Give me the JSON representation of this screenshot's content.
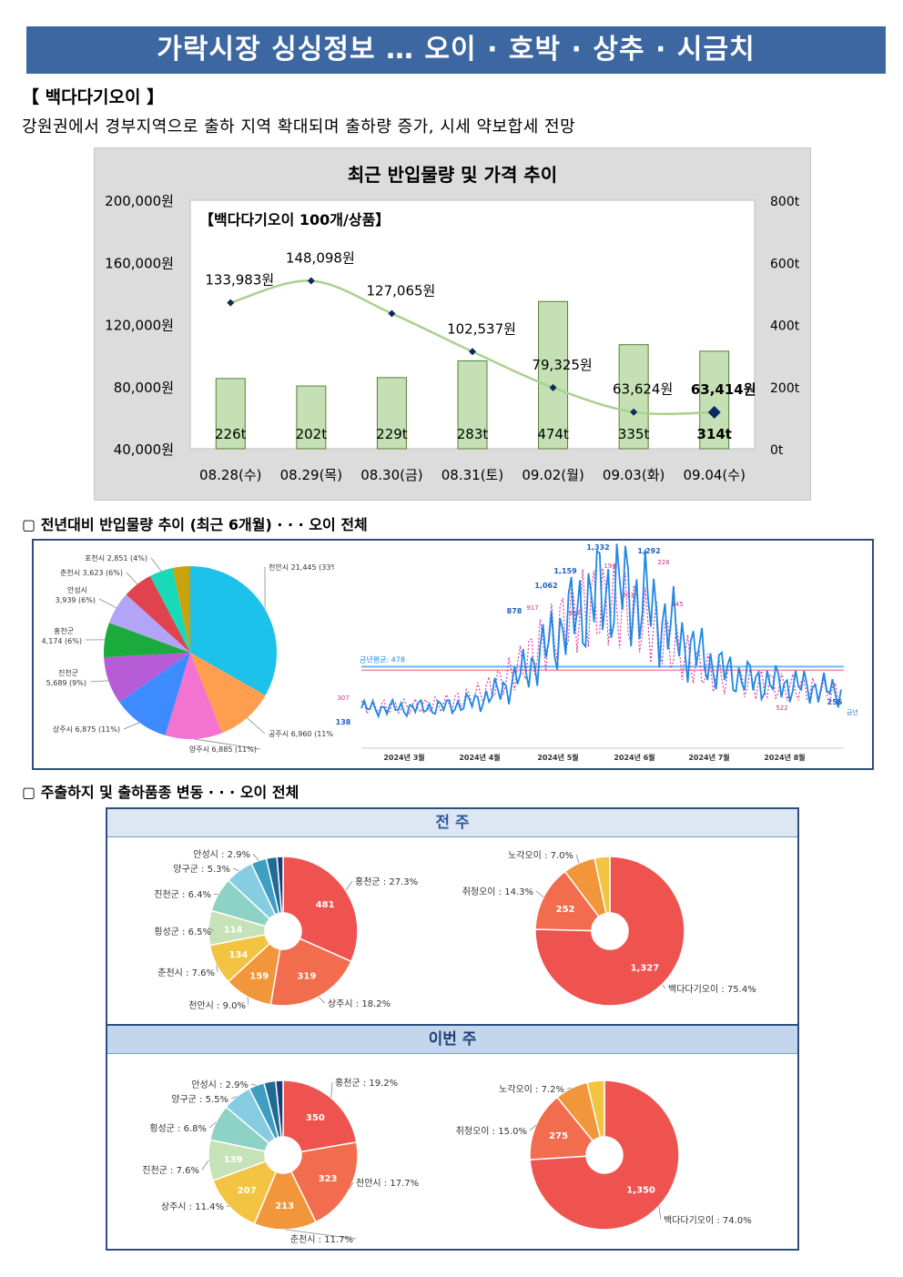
{
  "banner": "가락시장 싱싱정보 … 오이 · 호박 · 상추 · 시금치",
  "section_title": "【 백다다기오이 】",
  "summary": "강원권에서 경부지역으로 출하 지역 확대되며 출하량 증가, 시세 약보합세 전망",
  "chart_data": [
    {
      "type": "bar+line",
      "title": "최근 반입물량 및 가격 추이",
      "subtitle": "【백다다기오이 100개/상품】",
      "categories": [
        "08.28(수)",
        "08.29(목)",
        "08.30(금)",
        "08.31(토)",
        "09.02(월)",
        "09.03(화)",
        "09.04(수)"
      ],
      "volume_t": [
        226,
        202,
        229,
        283,
        474,
        335,
        314
      ],
      "volume_labels": [
        "226t",
        "202t",
        "229t",
        "283t",
        "474t",
        "335t",
        "314t"
      ],
      "price_won": [
        133983,
        148098,
        127065,
        102537,
        79325,
        63624,
        63414
      ],
      "price_labels": [
        "133,983원",
        "148,098원",
        "127,065원",
        "102,537원",
        "79,325원",
        "63,624원",
        "63,414원"
      ],
      "y_left_ticks": [
        "200,000원",
        "160,000원",
        "120,000원",
        "80,000원",
        "40,000원"
      ],
      "y_left_range": [
        40000,
        200000
      ],
      "y_right_ticks": [
        "800t",
        "600t",
        "400t",
        "200t",
        "0t"
      ],
      "y_right_range": [
        0,
        800
      ],
      "colors": {
        "bar": "#c5e0b4",
        "bar_border": "#548235",
        "line": "#a9d18e",
        "marker": "#0b2a5e"
      }
    },
    {
      "type": "pie",
      "title": "전년대비 반입물량 추이 (최근 6개월) · · · 오이 전체",
      "slices": [
        {
          "label": "천안시 21,445 (33%)",
          "value": 21445,
          "color": "#1cc2ea"
        },
        {
          "label": "공주시 6,960 (11%)",
          "value": 6960,
          "color": "#ff9e4f"
        },
        {
          "label": "양주시 6,885 (11%)",
          "value": 6885,
          "color": "#f472d0"
        },
        {
          "label": "상주시 6,875 (11%)",
          "value": 6875,
          "color": "#3d8bff"
        },
        {
          "label": "진천군 5,689 (9%)",
          "value": 5689,
          "color": "#b65cd6"
        },
        {
          "label": "홍천군 4,174 (6%)",
          "value": 4174,
          "color": "#1aab3c"
        },
        {
          "label": "안성시 3,939 (6%)",
          "value": 3939,
          "color": "#b2a4f7"
        },
        {
          "label": "춘천시 3,623 (6%)",
          "value": 3623,
          "color": "#e0424e"
        },
        {
          "label": "포천시 2,851 (4%)",
          "value": 2851,
          "color": "#18d9b8"
        },
        {
          "label": "",
          "value": 2100,
          "color": "#c9a20c"
        }
      ]
    },
    {
      "type": "line",
      "x_labels": [
        "2024년 3월",
        "2024년 4월",
        "2024년 5월",
        "2024년 6월",
        "2024년 7월",
        "2024년 8월"
      ],
      "avg_label": "금년평균: 478",
      "series_name": "금년",
      "this_year_peaks": [
        "878",
        "1,062",
        "1,159",
        "1,332",
        "1,292",
        "256",
        "138"
      ],
      "last_year_labels": [
        "307",
        "917",
        "987",
        "194",
        "203",
        "226",
        "145",
        "522"
      ],
      "colors": {
        "this_year": "#1e88e5",
        "last_year": "#d63fa5",
        "avg": "#6ab7ff",
        "last_avg": "#f28aa0"
      }
    },
    {
      "type": "donut",
      "band": "전 주",
      "heading": "주출하지 및 출하품종 변동 · · · 오이 전체",
      "origins": [
        {
          "label": "홍천군 : 27.3%",
          "value": 481,
          "value_label": "481",
          "color": "#ef5350"
        },
        {
          "label": "상주시 : 18.2%",
          "value": 319,
          "value_label": "319",
          "color": "#f26d4d"
        },
        {
          "label": "천안시 : 9.0%",
          "value": 159,
          "value_label": "159",
          "color": "#f1963a"
        },
        {
          "label": "춘천시 : 7.6%",
          "value": 134,
          "value_label": "134",
          "color": "#f2c441"
        },
        {
          "label": "횡성군 : 6.5%",
          "value": 114,
          "value_label": "114",
          "color": "#c6e3b8"
        },
        {
          "label": "진천군 : 6.4%",
          "value": 113,
          "value_label": "",
          "color": "#8ed1c5"
        },
        {
          "label": "양구군 : 5.3%",
          "value": 93,
          "value_label": "",
          "color": "#86cde2"
        },
        {
          "label": "안성시 : 2.9%",
          "value": 51,
          "value_label": "",
          "color": "#3f9fc3"
        },
        {
          "label": "",
          "value": 35,
          "value_label": "",
          "color": "#1f6b93"
        },
        {
          "label": "",
          "value": 20,
          "value_label": "",
          "color": "#1b3f7a"
        }
      ],
      "varieties": [
        {
          "label": "백다다기오이 : 75.4%",
          "value": 1327,
          "value_label": "1,327",
          "color": "#ef5350"
        },
        {
          "label": "취청오이 : 14.3%",
          "value": 252,
          "value_label": "252",
          "color": "#f26d4d"
        },
        {
          "label": "노각오이 : 7.0%",
          "value": 123,
          "value_label": "",
          "color": "#f1963a"
        },
        {
          "label": "",
          "value": 58,
          "value_label": "",
          "color": "#f2c441"
        }
      ]
    },
    {
      "type": "donut",
      "band": "이번 주",
      "origins": [
        {
          "label": "홍천군 : 19.2%",
          "value": 350,
          "value_label": "350",
          "color": "#ef5350"
        },
        {
          "label": "천안시 : 17.7%",
          "value": 323,
          "value_label": "323",
          "color": "#f26d4d"
        },
        {
          "label": "춘천시 : 11.7%",
          "value": 213,
          "value_label": "213",
          "color": "#f1963a"
        },
        {
          "label": "상주시 : 11.4%",
          "value": 207,
          "value_label": "207",
          "color": "#f2c441"
        },
        {
          "label": "진천군 : 7.6%",
          "value": 139,
          "value_label": "139",
          "color": "#c6e3b8"
        },
        {
          "label": "횡성군 : 6.8%",
          "value": 124,
          "value_label": "",
          "color": "#8ed1c5"
        },
        {
          "label": "양구군 : 5.5%",
          "value": 100,
          "value_label": "",
          "color": "#86cde2"
        },
        {
          "label": "안성시 : 2.9%",
          "value": 53,
          "value_label": "",
          "color": "#3f9fc3"
        },
        {
          "label": "",
          "value": 40,
          "value_label": "",
          "color": "#1f6b93"
        },
        {
          "label": "",
          "value": 25,
          "value_label": "",
          "color": "#1b3f7a"
        }
      ],
      "varieties": [
        {
          "label": "백다다기오이 : 74.0%",
          "value": 1350,
          "value_label": "1,350",
          "color": "#ef5350"
        },
        {
          "label": "취청오이 : 15.0%",
          "value": 275,
          "value_label": "275",
          "color": "#f26d4d"
        },
        {
          "label": "노각오이 : 7.2%",
          "value": 131,
          "value_label": "",
          "color": "#f1963a"
        },
        {
          "label": "",
          "value": 68,
          "value_label": "",
          "color": "#f2c441"
        }
      ]
    }
  ],
  "headings": {
    "trend": "▢ 전년대비 반입물량 추이 (최근 6개월) · · · 오이 전체",
    "origin": "▢ 주출하지 및 출하품종 변동 · · · 오이 전체"
  }
}
